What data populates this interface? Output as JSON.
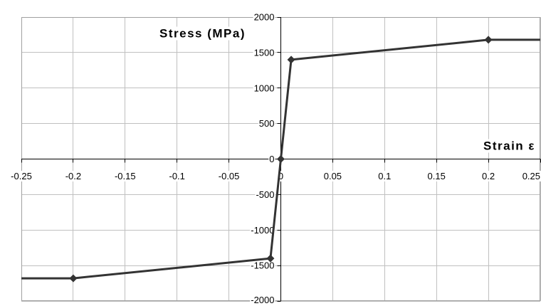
{
  "chart_data": {
    "type": "line",
    "title": "",
    "xlabel": "Strain ε",
    "ylabel": "Stress (MPa)",
    "xlim": [
      -0.25,
      0.25
    ],
    "ylim": [
      -2000,
      2000
    ],
    "xticks": [
      -0.25,
      -0.2,
      -0.15,
      -0.1,
      -0.05,
      0,
      0.05,
      0.1,
      0.15,
      0.2,
      0.25
    ],
    "xtick_labels": [
      "-0.25",
      "-0.2",
      "-0.15",
      "-0.1",
      "-0.05",
      "0",
      "0.05",
      "0.1",
      "0.15",
      "0.2",
      "0.25"
    ],
    "yticks": [
      -2000,
      -1500,
      -1000,
      -500,
      0,
      500,
      1000,
      1500,
      2000
    ],
    "ytick_labels": [
      "-2000",
      "-1500",
      "-1000",
      "-500",
      "0",
      "500",
      "1000",
      "1500",
      "2000"
    ],
    "grid": true,
    "legend": "none",
    "axes_cross_at_origin": true,
    "series": [
      {
        "x": [
          -0.25,
          -0.2,
          -0.01,
          0,
          0.01,
          0.2,
          0.25
        ],
        "y": [
          -1680,
          -1680,
          -1400,
          0,
          1400,
          1680,
          1680
        ],
        "markers": [
          false,
          true,
          true,
          true,
          true,
          true,
          false
        ],
        "marker": "diamond",
        "color": "#333333"
      }
    ]
  }
}
